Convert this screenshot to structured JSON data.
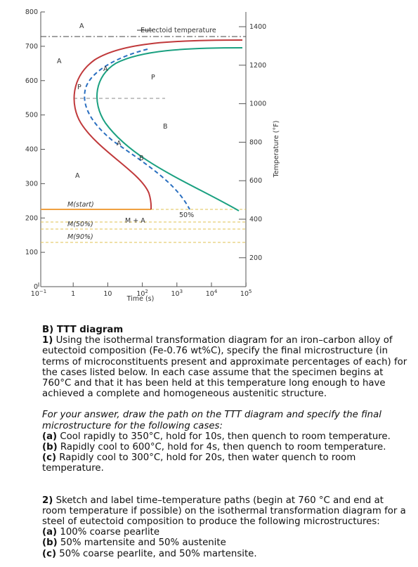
{
  "figure": {
    "y_ticks_c": [
      "800",
      "700",
      "600",
      "500",
      "400",
      "300",
      "200",
      "100",
      "0"
    ],
    "y_ticks_f": [
      "1400",
      "1200",
      "1000",
      "800",
      "600",
      "400",
      "200"
    ],
    "x_ticks": [
      {
        "base": "10",
        "exp": "−1"
      },
      {
        "base": "1",
        "exp": ""
      },
      {
        "base": "10",
        "exp": ""
      },
      {
        "base": "10",
        "exp": "2"
      },
      {
        "base": "10",
        "exp": "3"
      },
      {
        "base": "10",
        "exp": "4"
      },
      {
        "base": "10",
        "exp": "5"
      }
    ],
    "x_label": "Time (s)",
    "y2_label": "Temperature (°F)",
    "eutectoid": "Eutectoid temperature",
    "regions": [
      "A",
      "A",
      "A",
      "P",
      "B",
      "M + A"
    ],
    "small_labels": [
      "A",
      "P",
      "A",
      "B"
    ],
    "m_start": "M(start)",
    "m_50": "M(50%)",
    "m_90": "M(90%)",
    "fifty": "50%"
  },
  "section": {
    "heading": "B) TTT diagram",
    "q1": {
      "num": "1)",
      "text": "Using the isothermal transformation diagram for an iron–carbon alloy of eutectoid composition (Fe-0.76 wt%C), specify the final microstructure (in terms of microconstituents present and approximate percentages of each) for the cases listed below. In each case assume that the specimen begins at 760°C and that it has been held at this temperature long enough to have achieved a complete and homogeneous austenitic structure."
    },
    "instruction": "For your answer, draw the path on the TTT diagram and specify the final microstructure for the following cases:",
    "cases": [
      {
        "label": "(a)",
        "text": "Cool rapidly to 350°C, hold for 10s, then quench to room temperature."
      },
      {
        "label": "(b)",
        "text": "Rapidly cool to 600°C, hold for 4s, then quench to room temperature."
      },
      {
        "label": "(c)",
        "text": "Rapidly cool to 300°C, hold for 20s, then water quench to room temperature."
      }
    ],
    "q2": {
      "num": "2)",
      "text": "Sketch and label time–temperature paths (begin at 760 °C and end at room temperature if possible) on the isothermal transformation diagram for a steel of eutectoid composition to produce the following microstructures:"
    },
    "items": [
      {
        "label": "(a)",
        "text": "100% coarse pearlite"
      },
      {
        "label": "(b)",
        "text": "50% martensite and 50% austenite"
      },
      {
        "label": "(c)",
        "text": "50% coarse pearlite, and 50% martensite."
      }
    ]
  }
}
